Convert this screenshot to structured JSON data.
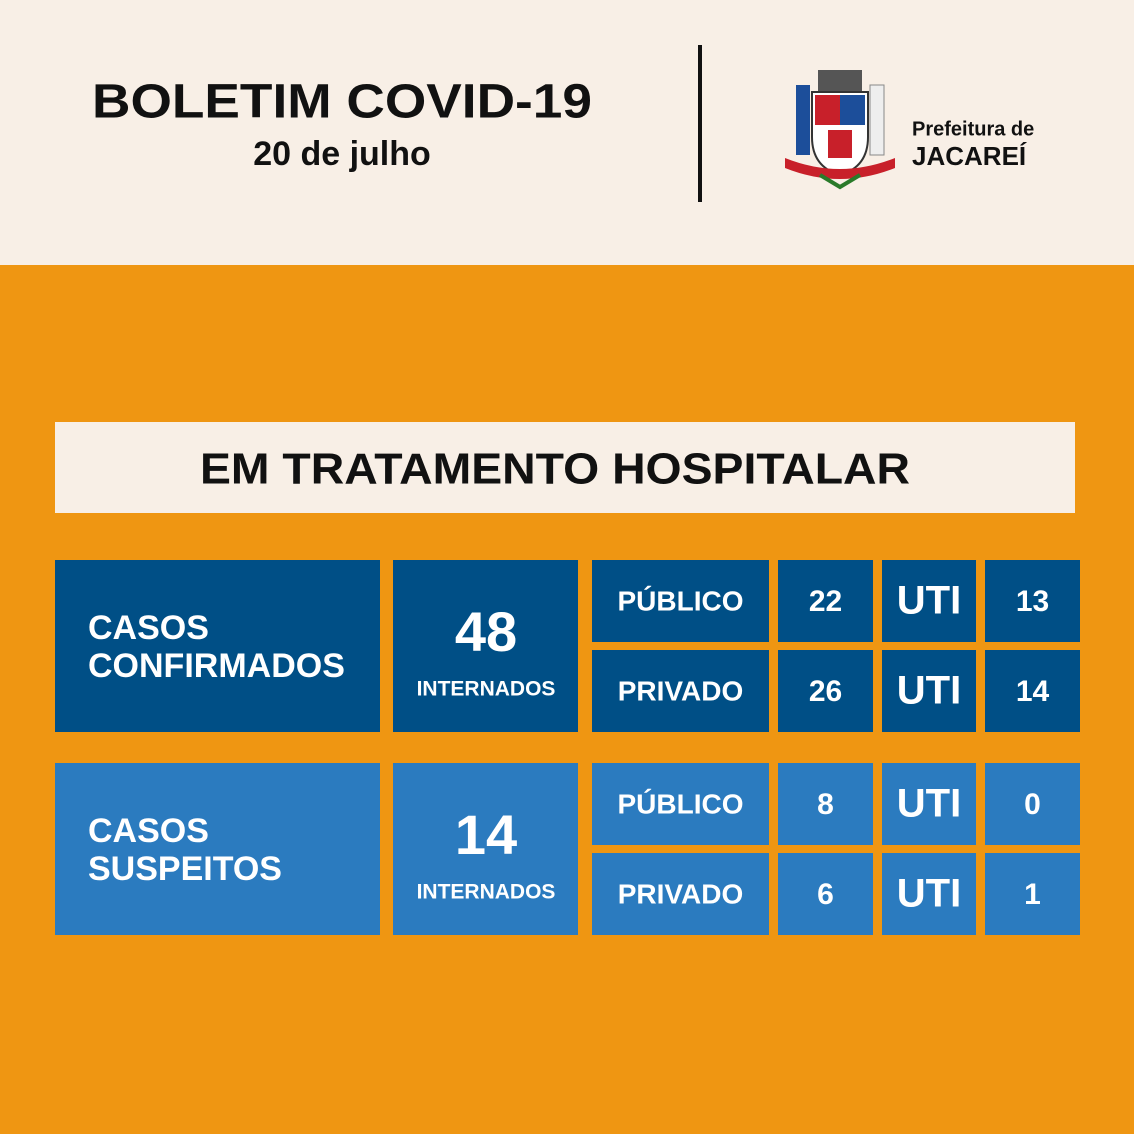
{
  "header": {
    "title": "BOLETIM COVID-19",
    "date": "20 de julho",
    "org_line1": "Prefeitura de",
    "org_line2": "JACAREÍ"
  },
  "banner": "EM TRATAMENTO HOSPITALAR",
  "groups": [
    {
      "label_line1": "CASOS",
      "label_line2": "CONFIRMADOS",
      "total": 48,
      "total_label": "INTERNADOS",
      "rows": [
        {
          "sector": "PÚBLICO",
          "count": 22,
          "icu_label": "UTI",
          "icu": 13
        },
        {
          "sector": "PRIVADO",
          "count": 26,
          "icu_label": "UTI",
          "icu": 14
        }
      ]
    },
    {
      "label_line1": "CASOS",
      "label_line2": "SUSPEITOS",
      "total": 14,
      "total_label": "INTERNADOS",
      "rows": [
        {
          "sector": "PÚBLICO",
          "count": 8,
          "icu_label": "UTI",
          "icu": 0
        },
        {
          "sector": "PRIVADO",
          "count": 6,
          "icu_label": "UTI",
          "icu": 1
        }
      ]
    }
  ]
}
